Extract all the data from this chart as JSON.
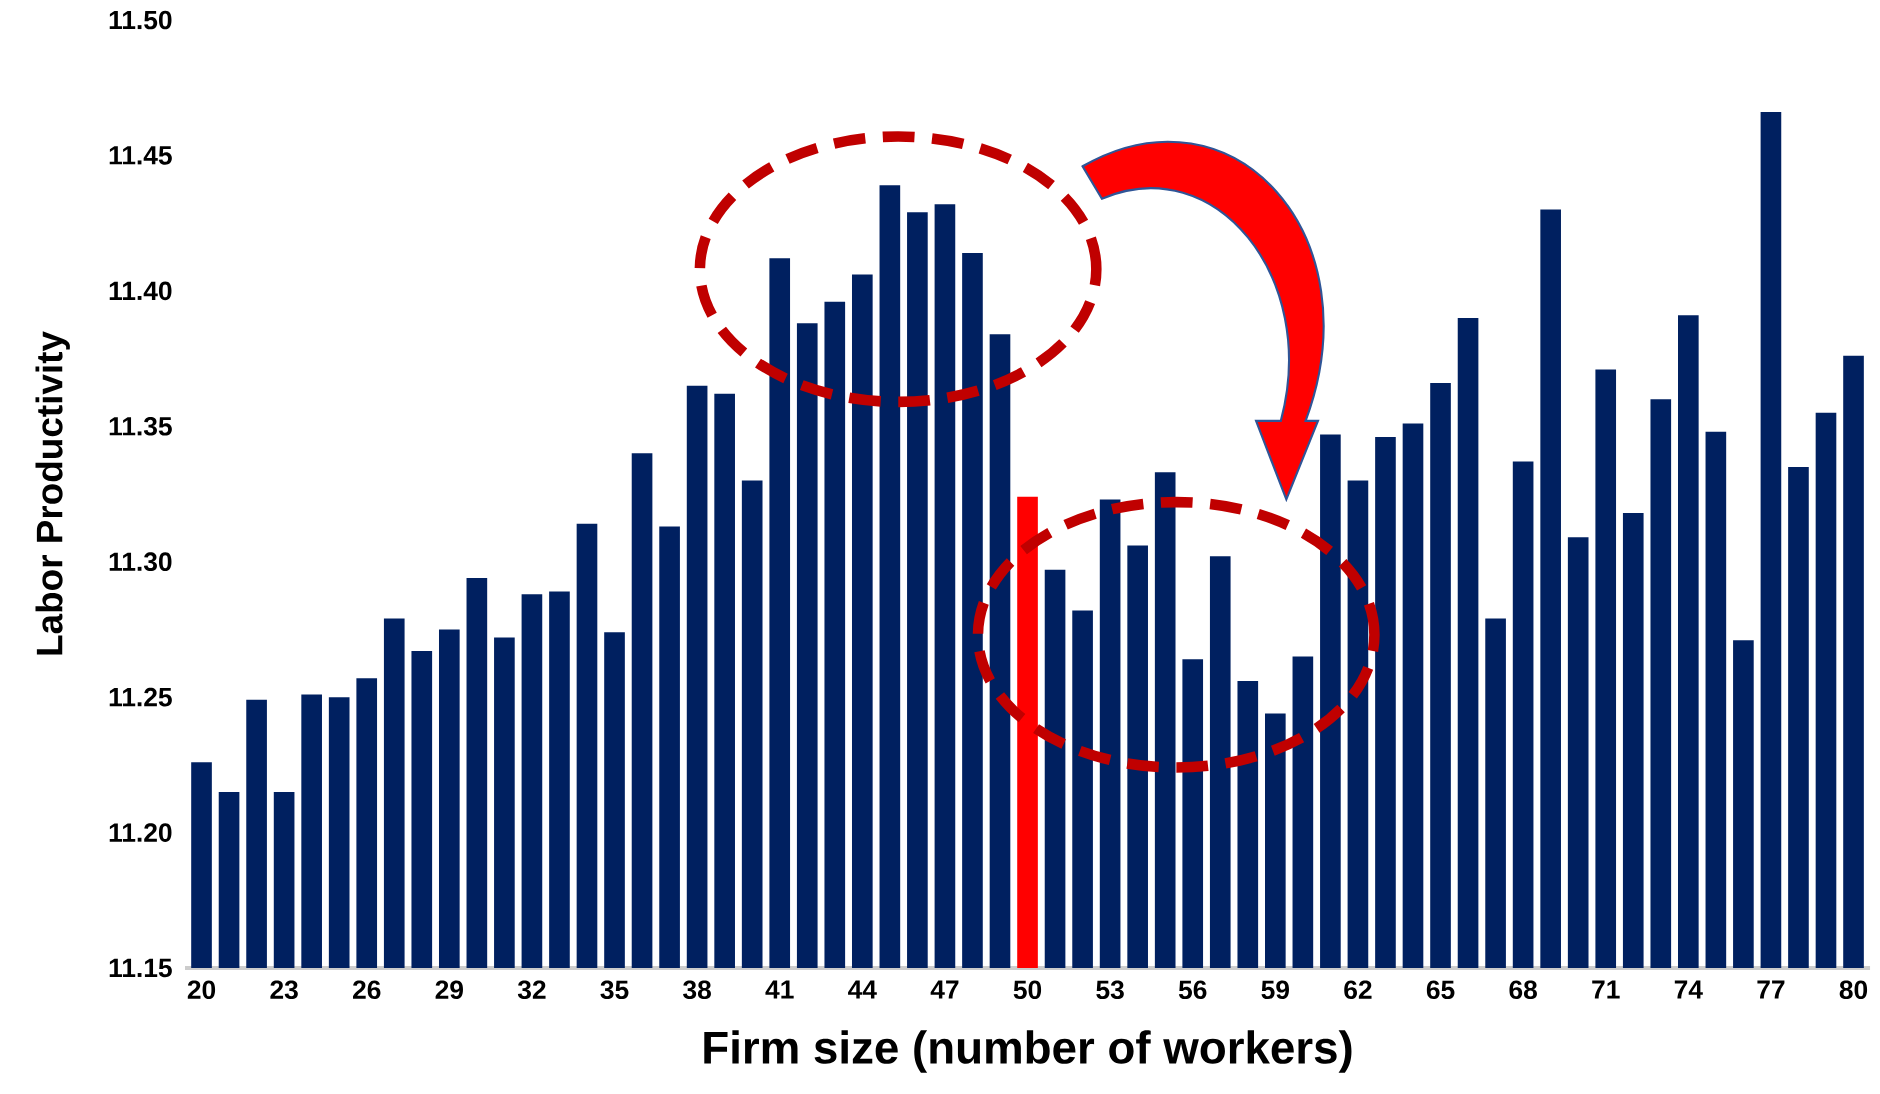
{
  "chart_data": {
    "type": "bar",
    "xlabel": "Firm size (number of workers)",
    "ylabel": "Labor Productivity",
    "categories": [
      "20",
      null,
      null,
      "23",
      null,
      null,
      "26",
      null,
      null,
      "29",
      null,
      null,
      "32",
      null,
      null,
      "35",
      null,
      null,
      "38",
      null,
      null,
      "41",
      null,
      null,
      "44",
      null,
      null,
      "47",
      null,
      null,
      "50",
      null,
      null,
      "53",
      null,
      null,
      "56",
      null,
      null,
      "59",
      null,
      null,
      "62",
      null,
      null,
      "65",
      null,
      null,
      "68",
      null,
      null,
      "71",
      null,
      null,
      "74",
      null,
      null,
      "77",
      null,
      null,
      "80"
    ],
    "values": [
      11.226,
      11.215,
      11.249,
      11.215,
      11.251,
      11.25,
      11.257,
      11.279,
      11.267,
      11.275,
      11.294,
      11.272,
      11.288,
      11.289,
      11.314,
      11.274,
      11.34,
      11.313,
      11.365,
      11.362,
      11.33,
      11.412,
      11.388,
      11.396,
      11.406,
      11.439,
      11.429,
      11.432,
      11.414,
      11.384,
      11.324,
      11.297,
      11.282,
      11.323,
      11.306,
      11.333,
      11.264,
      11.302,
      11.256,
      11.244,
      11.265,
      11.347,
      11.33,
      11.346,
      11.351,
      11.366,
      11.39,
      11.279,
      11.337,
      11.43,
      11.309,
      11.371,
      11.318,
      11.36,
      11.391,
      11.348,
      11.271,
      11.466,
      11.335,
      11.355,
      11.376
    ],
    "colors": [
      "#002060",
      "#002060",
      "#002060",
      "#002060",
      "#002060",
      "#002060",
      "#002060",
      "#002060",
      "#002060",
      "#002060",
      "#002060",
      "#002060",
      "#002060",
      "#002060",
      "#002060",
      "#002060",
      "#002060",
      "#002060",
      "#002060",
      "#002060",
      "#002060",
      "#002060",
      "#002060",
      "#002060",
      "#002060",
      "#002060",
      "#002060",
      "#002060",
      "#002060",
      "#002060",
      "#ff0000",
      "#002060",
      "#002060",
      "#002060",
      "#002060",
      "#002060",
      "#002060",
      "#002060",
      "#002060",
      "#002060",
      "#002060",
      "#002060",
      "#002060",
      "#002060",
      "#002060",
      "#002060",
      "#002060",
      "#002060",
      "#002060",
      "#002060",
      "#002060",
      "#002060",
      "#002060",
      "#002060",
      "#002060",
      "#002060",
      "#002060",
      "#002060",
      "#002060",
      "#002060",
      "#002060"
    ],
    "ylim": [
      11.15,
      11.5
    ],
    "yticks": [
      11.15,
      {
        "value": 11.2,
        "label": "11.20"
      },
      11.25,
      {
        "value": 11.3,
        "label": "11.30"
      },
      11.35,
      {
        "value": 11.4,
        "label": "11.40"
      },
      11.45,
      {
        "value": 11.5,
        "label": "11.50"
      }
    ]
  }
}
